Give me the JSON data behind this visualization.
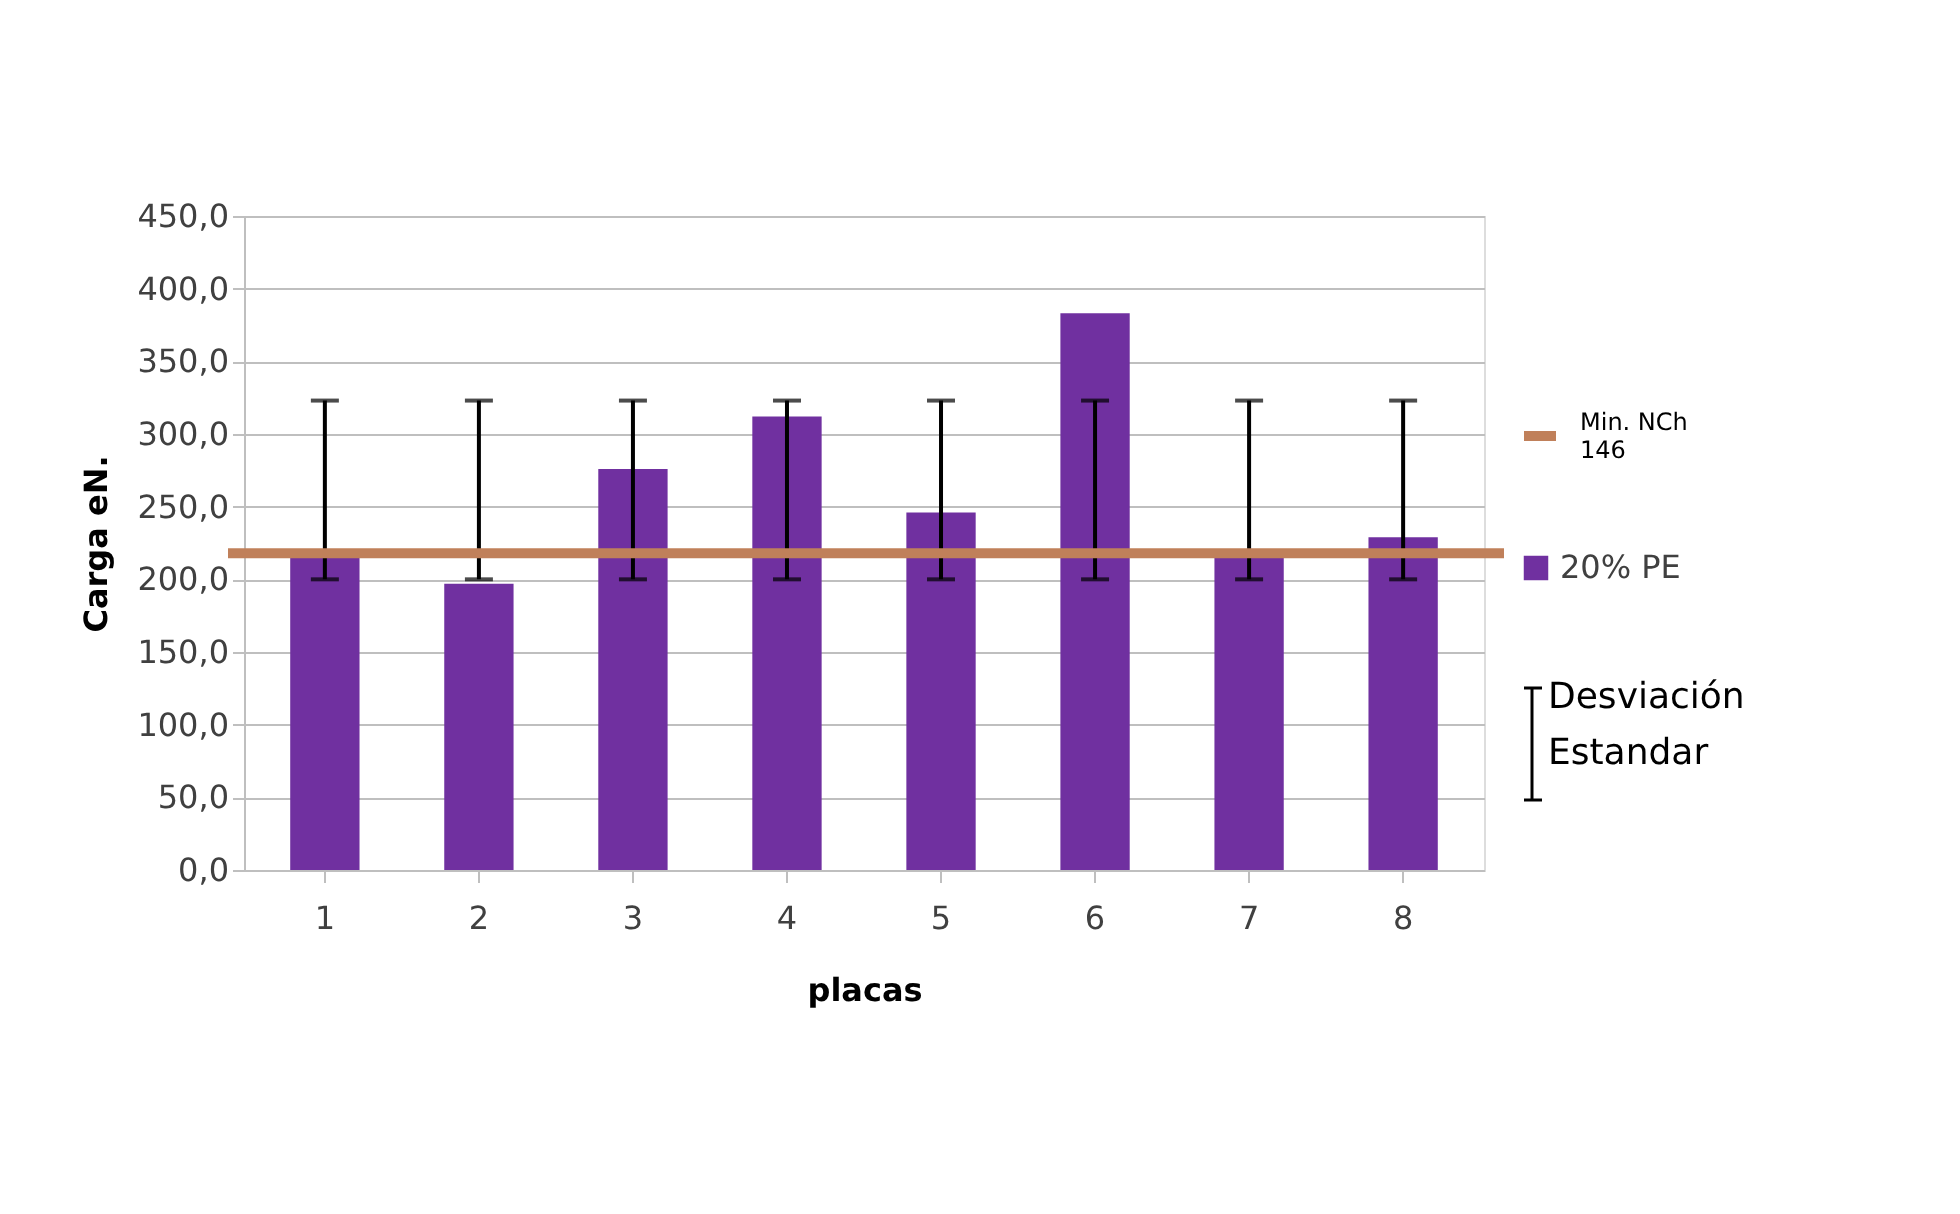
{
  "chart_data": {
    "type": "bar",
    "xlabel": "placas",
    "ylabel": "Carga eN.",
    "categories": [
      "1",
      "2",
      "3",
      "4",
      "5",
      "6",
      "7",
      "8"
    ],
    "series": [
      {
        "name": "20% PE",
        "color": "#7030a0",
        "values": [
          218,
          197,
          276,
          312,
          246,
          383,
          216,
          229
        ],
        "errors": [
          [
            200,
            323
          ],
          [
            200,
            323
          ],
          [
            200,
            323
          ],
          [
            200,
            323
          ],
          [
            200,
            323
          ],
          [
            200,
            323
          ],
          [
            200,
            323
          ],
          [
            200,
            323
          ]
        ]
      }
    ],
    "ref_lines": [
      {
        "axis": "y",
        "value": 218,
        "label": "Min. NCh 146",
        "color": "#c0805a"
      }
    ],
    "annotations": [
      "Desviación Estandar"
    ],
    "ylim": [
      0,
      450
    ],
    "yticks": [
      {
        "value": 0,
        "label": "0,0"
      },
      {
        "value": 50,
        "label": "50,0"
      },
      {
        "value": 100,
        "label": "100,0"
      },
      {
        "value": 150,
        "label": "150,0"
      },
      {
        "value": 200,
        "label": "200,0"
      },
      {
        "value": 250,
        "label": "250,0"
      },
      {
        "value": 300,
        "label": "300,0"
      },
      {
        "value": 350,
        "label": "350,0"
      },
      {
        "value": 400,
        "label": "400,0"
      },
      {
        "value": 450,
        "label": "450,0"
      }
    ],
    "grid": "y",
    "legend": "right"
  }
}
